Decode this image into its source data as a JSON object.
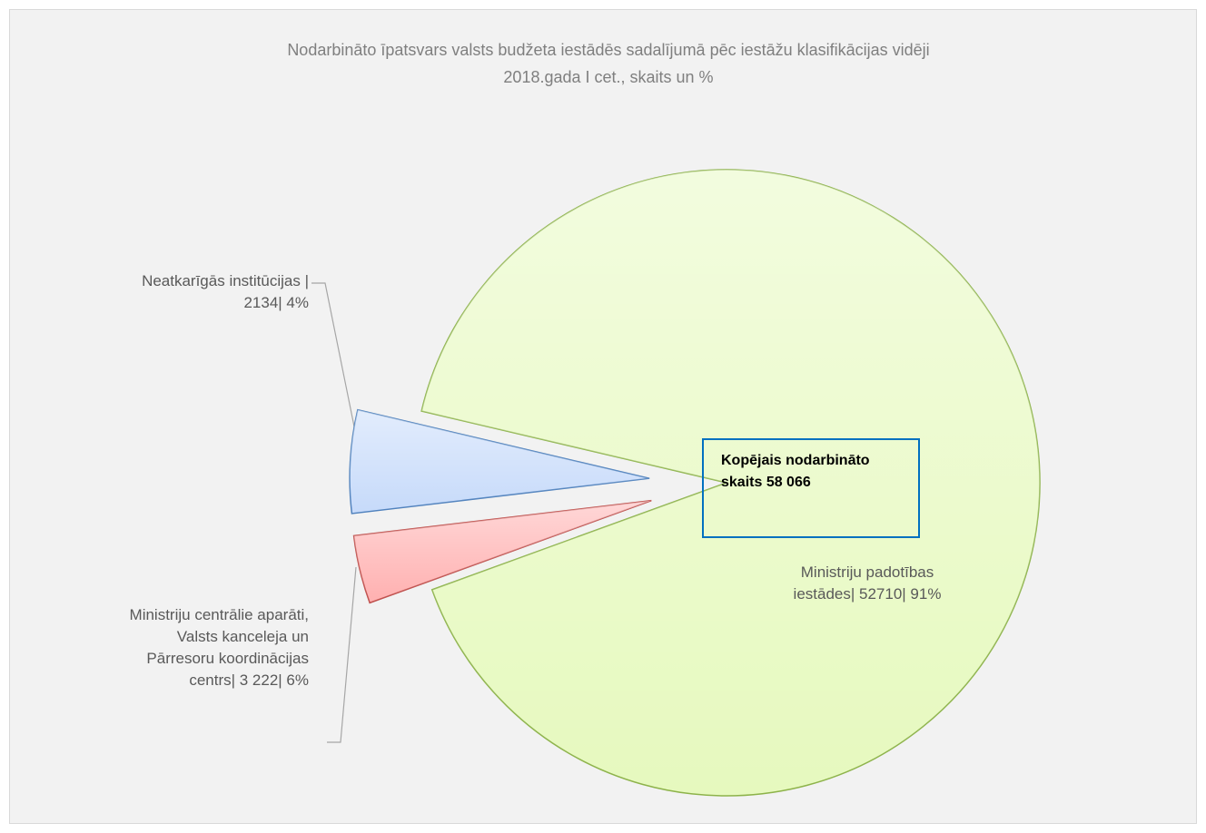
{
  "chart_data": {
    "type": "pie",
    "title": "Nodarbināto īpatsvars valsts budžeta iestādēs sadalījumā pēc iestāžu klasifikācijas  vidēji\n2018.gada I cet., skaits un %",
    "categories": [
      "Ministriju padotības iestādes",
      "Neatkarīgās institūcijas",
      "Ministriju centrālie aparāti, Valsts kanceleja un Pārresoru koordinācijas centrs"
    ],
    "values": [
      52710,
      2134,
      3222
    ],
    "value_labels": [
      "Ministriju padotības\niestādes| 52710| 91%",
      "Neatkarīgās institūcijas |\n2134| 4%",
      "Ministriju centrālie aparāti,\nValsts kanceleja un\nPārresoru koordinācijas\ncentrs| 3 222| 6%"
    ],
    "colors": [
      "#e6f9be",
      "#ffb0b0",
      "#c6dafa"
    ],
    "annotation": "Kopējais nodarbināto\nskaits 58 066"
  }
}
